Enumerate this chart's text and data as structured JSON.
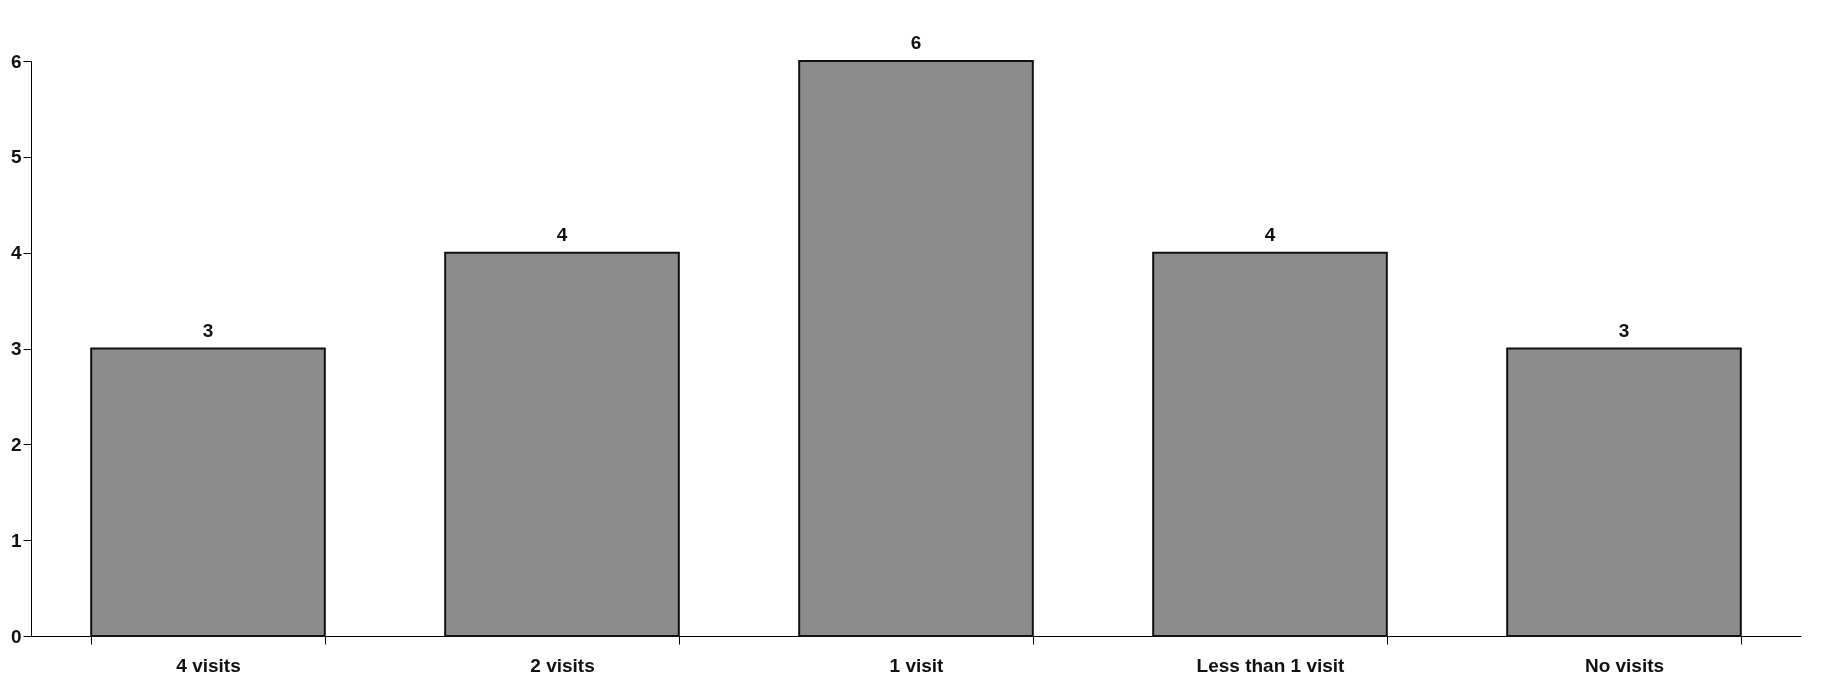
{
  "chart_data": {
    "type": "bar",
    "categories": [
      "4 visits",
      "2 visits",
      "1 visit",
      "Less than 1 visit",
      "No visits"
    ],
    "values": [
      3,
      4,
      6,
      4,
      3
    ],
    "color": "#8c8c8c",
    "ylim": [
      0,
      6
    ],
    "yticks": [
      0,
      1,
      2,
      3,
      4,
      5,
      6
    ],
    "data_labels": true,
    "grid": false
  }
}
